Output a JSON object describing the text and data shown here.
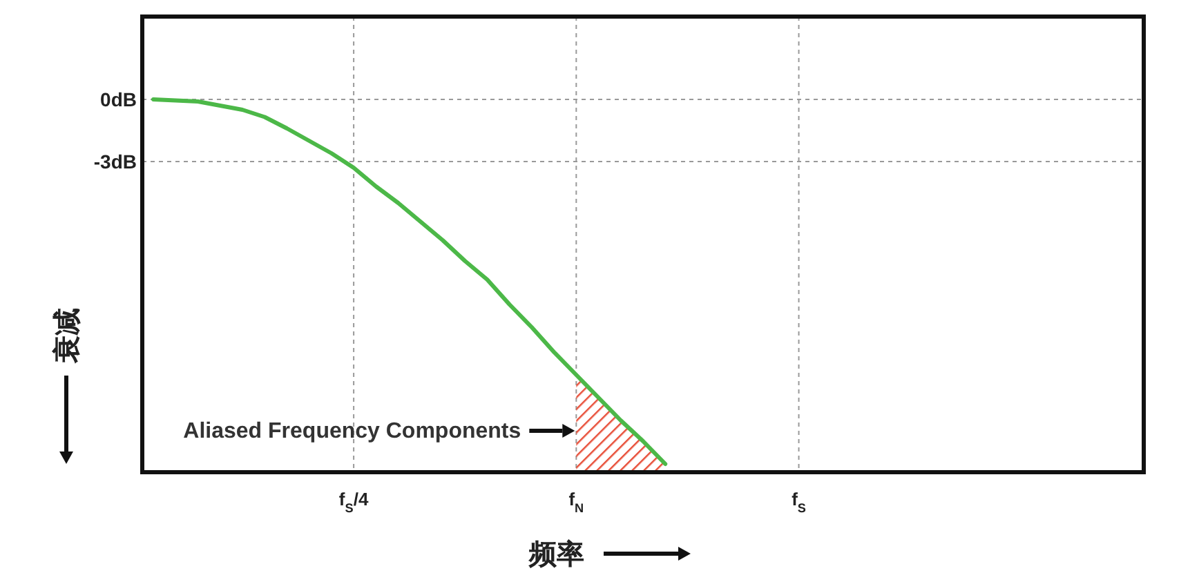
{
  "chart_data": {
    "type": "line",
    "xlabel": "频率",
    "ylabel": "衰减",
    "categories": [
      null,
      null,
      null,
      null,
      null,
      null,
      null,
      null,
      null,
      "f$_{S}$/4",
      null,
      null,
      null,
      null,
      null,
      null,
      null,
      null,
      null,
      "f$_{N}$",
      null,
      null,
      null,
      null,
      null,
      null,
      null,
      null,
      null,
      "f$_{S}$",
      null,
      null,
      null,
      null,
      null,
      null,
      null,
      null,
      null,
      null,
      null,
      null,
      null,
      null,
      null
    ],
    "ylim": [
      -18,
      4
    ],
    "yticks": [
      {
        "value": 0,
        "label": "0dB"
      },
      {
        "value": -3,
        "label": "-3dB"
      }
    ],
    "grid": true,
    "series": [
      {
        "color": "#4cb848",
        "values": [
          0,
          -0.05,
          -0.1,
          -0.3,
          -0.5,
          -0.85,
          -1.4,
          -2.0,
          -2.6,
          -3.3,
          -4.2,
          -5.0,
          -5.9,
          -6.8,
          -7.8,
          -8.7,
          -9.9,
          -11.0,
          -12.2,
          -13.3,
          -14.4,
          -15.5,
          -16.5,
          -17.6,
          null,
          null,
          null,
          null,
          null,
          null,
          null,
          null,
          null,
          null,
          null,
          null,
          null,
          null,
          null,
          null,
          null,
          null,
          null,
          null,
          null
        ],
        "lower": [
          null,
          null,
          null,
          null,
          null,
          null,
          null,
          null,
          null,
          null,
          null,
          null,
          null,
          null,
          null,
          null,
          null,
          null,
          null,
          -18,
          -18,
          -18,
          -18,
          -18,
          null,
          null,
          null,
          null,
          null,
          null,
          null,
          null,
          null,
          null,
          null,
          null,
          null,
          null,
          null,
          null,
          null,
          null,
          null,
          null,
          null
        ],
        "upper": [
          null,
          null,
          null,
          null,
          null,
          null,
          null,
          null,
          null,
          null,
          null,
          null,
          null,
          null,
          null,
          null,
          null,
          null,
          null,
          -13.3,
          -14.4,
          -15.5,
          -16.5,
          -17.6,
          null,
          null,
          null,
          null,
          null,
          null,
          null,
          null,
          null,
          null,
          null,
          null,
          null,
          null,
          null,
          null,
          null,
          null,
          null,
          null,
          null
        ]
      }
    ],
    "annotations": [
      "Aliased Frequency Components"
    ]
  }
}
